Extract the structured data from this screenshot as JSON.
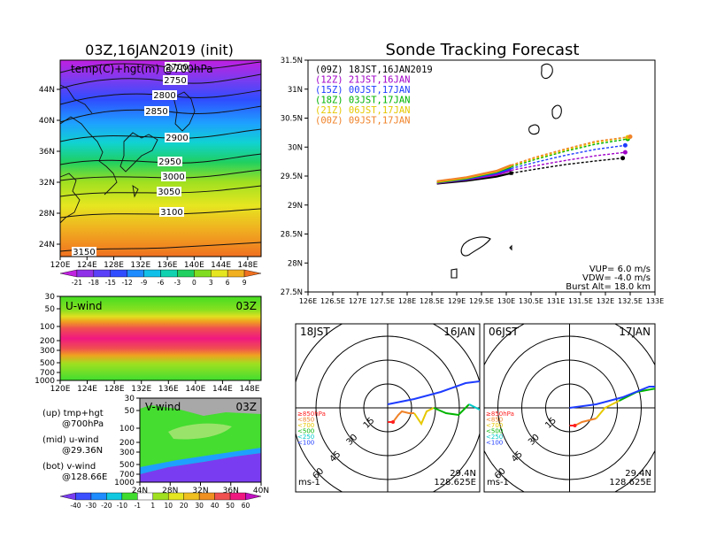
{
  "left": {
    "title": "03Z,16JAN2019 (init)",
    "map_label": "temp(C)+hgt(m) @700hPa",
    "x_ticks": [
      "120E",
      "124E",
      "128E",
      "132E",
      "136E",
      "140E",
      "144E",
      "148E"
    ],
    "y_ticks": [
      "44N",
      "40N",
      "36N",
      "32N",
      "28N",
      "24N"
    ],
    "contours": [
      {
        "label": "2700",
        "x": 200,
        "y": 78
      },
      {
        "label": "2750",
        "x": 198,
        "y": 93
      },
      {
        "label": "2800",
        "x": 186,
        "y": 110
      },
      {
        "label": "2850",
        "x": 177,
        "y": 128
      },
      {
        "label": "2900",
        "x": 200,
        "y": 158
      },
      {
        "label": "2950",
        "x": 192,
        "y": 185
      },
      {
        "label": "3000",
        "x": 196,
        "y": 202
      },
      {
        "label": "3050",
        "x": 191,
        "y": 219
      },
      {
        "label": "3100",
        "x": 194,
        "y": 242
      },
      {
        "label": "3150",
        "x": 95,
        "y": 287
      }
    ],
    "temp_colorbar": [
      "-21",
      "-18",
      "-15",
      "-12",
      "-9",
      "-6",
      "-3",
      "0",
      "3",
      "6",
      "9"
    ],
    "uwind_label": "U-wind",
    "uwind_time": "03Z",
    "uwind_y_ticks": [
      "30",
      "50",
      "100",
      "200",
      "300",
      "500",
      "700",
      "1000"
    ],
    "uwind_x_ticks": [
      "120E",
      "124E",
      "128E",
      "132E",
      "136E",
      "140E",
      "144E",
      "148E"
    ],
    "vwind_label": "V-wind",
    "vwind_time": "03Z",
    "vwind_y_ticks": [
      "30",
      "50",
      "100",
      "200",
      "300",
      "500",
      "700",
      "1000"
    ],
    "vwind_x_ticks": [
      "24N",
      "28N",
      "32N",
      "36N",
      "40N"
    ],
    "wind_colorbar": [
      "-40",
      "-30",
      "-20",
      "-10",
      "-1",
      "1",
      "10",
      "20",
      "30",
      "40",
      "50",
      "60"
    ],
    "notes": [
      {
        "a": "(up) tmp+hgt",
        "b": "@700hPa"
      },
      {
        "a": "(mid) u-wind",
        "b": "@29.36N"
      },
      {
        "a": "(bot) v-wind",
        "b": "@128.66E"
      }
    ]
  },
  "track": {
    "title": "Sonde Tracking Forecast",
    "legend": [
      {
        "text": "(09Z)  18JST,16JAN2019",
        "color": "#000000"
      },
      {
        "text": "(12Z)  21JST,16JAN",
        "color": "#a000c8"
      },
      {
        "text": "(15Z)  00JST,17JAN",
        "color": "#1e3cff"
      },
      {
        "text": "(18Z)  03JST,17JAN",
        "color": "#00b400"
      },
      {
        "text": "(21Z)  06JST,17JAN",
        "color": "#e6c800"
      },
      {
        "text": "(00Z)  09JST,17JAN",
        "color": "#f08228"
      }
    ],
    "y_ticks": [
      "31.5N",
      "31N",
      "30.5N",
      "30N",
      "29.5N",
      "29N",
      "28.5N",
      "28N",
      "27.5N"
    ],
    "x_ticks": [
      "126E",
      "126.5E",
      "127E",
      "127.5E",
      "128E",
      "128.5E",
      "129E",
      "129.5E",
      "130E",
      "130.5E",
      "131E",
      "131.5E",
      "132E",
      "132.5E",
      "133E"
    ],
    "params": [
      "VUP=  6.0 m/s",
      "VDW= -4.0 m/s",
      "Burst Alt= 18.0 km"
    ]
  },
  "chart_data": {
    "type": "line",
    "title": "Sonde Tracking Forecast",
    "xlim": [
      126,
      133
    ],
    "ylim": [
      27.5,
      31.5
    ],
    "series": [
      {
        "name": "(09Z) 18JST,16JAN2019",
        "color": "#000000",
        "x": [
          128.6,
          129.2,
          129.8,
          130.1,
          130.6,
          131.2,
          131.8,
          132.35
        ],
        "y": [
          29.37,
          29.42,
          29.49,
          29.55,
          29.62,
          29.7,
          29.76,
          29.81
        ]
      },
      {
        "name": "(12Z) 21JST,16JAN",
        "color": "#a000c8",
        "x": [
          128.6,
          129.2,
          129.8,
          130.1,
          130.6,
          131.2,
          131.8,
          132.4
        ],
        "y": [
          29.38,
          29.44,
          29.52,
          29.6,
          29.68,
          29.77,
          29.85,
          29.91
        ]
      },
      {
        "name": "(15Z) 00JST,17JAN",
        "color": "#1e3cff",
        "x": [
          128.6,
          129.2,
          129.8,
          130.1,
          130.6,
          131.2,
          131.8,
          132.4
        ],
        "y": [
          29.39,
          29.45,
          29.55,
          29.63,
          29.74,
          29.86,
          29.96,
          30.03
        ]
      },
      {
        "name": "(18Z) 03JST,17JAN",
        "color": "#00b400",
        "x": [
          128.6,
          129.2,
          129.8,
          130.1,
          130.6,
          131.2,
          131.8,
          132.45
        ],
        "y": [
          29.39,
          29.46,
          29.57,
          29.66,
          29.79,
          29.93,
          30.05,
          30.14
        ]
      },
      {
        "name": "(21Z) 06JST,17JAN",
        "color": "#e6c800",
        "x": [
          128.6,
          129.2,
          129.8,
          130.1,
          130.6,
          131.2,
          131.8,
          132.45
        ],
        "y": [
          29.4,
          29.47,
          29.58,
          29.68,
          29.81,
          29.95,
          30.08,
          30.17
        ]
      },
      {
        "name": "(00Z) 09JST,17JAN",
        "color": "#f08228",
        "x": [
          128.6,
          129.2,
          129.8,
          130.1,
          130.6,
          131.2,
          131.8,
          132.5
        ],
        "y": [
          29.41,
          29.48,
          29.59,
          29.69,
          29.83,
          29.97,
          30.1,
          30.18
        ]
      }
    ]
  },
  "hodo1": {
    "time": "18JST",
    "date": "16JAN",
    "rings": [
      "15",
      "30",
      "45",
      "60"
    ],
    "levels": [
      {
        "text": "≥850hPa",
        "color": "#ff2020"
      },
      {
        "text": "<850",
        "color": "#f08228"
      },
      {
        "text": "<700",
        "color": "#e6c800"
      },
      {
        "text": "<500",
        "color": "#00b400"
      },
      {
        "text": "<250",
        "color": "#00c8c8"
      },
      {
        "text": "<100",
        "color": "#1e3cff"
      }
    ],
    "unit": "ms-1",
    "lat": "29.4N",
    "lon": "128.625E"
  },
  "hodo2": {
    "time": "06JST",
    "date": "17JAN",
    "rings": [
      "15",
      "30",
      "45",
      "60"
    ],
    "levels": [
      {
        "text": "≥850hPa",
        "color": "#ff2020"
      },
      {
        "text": "<850",
        "color": "#f08228"
      },
      {
        "text": "<700",
        "color": "#e6c800"
      },
      {
        "text": "<500",
        "color": "#00b400"
      },
      {
        "text": "<250",
        "color": "#00c8c8"
      },
      {
        "text": "<100",
        "color": "#1e3cff"
      }
    ],
    "unit": "ms-1",
    "lat": "29.4N",
    "lon": "128.625E"
  }
}
